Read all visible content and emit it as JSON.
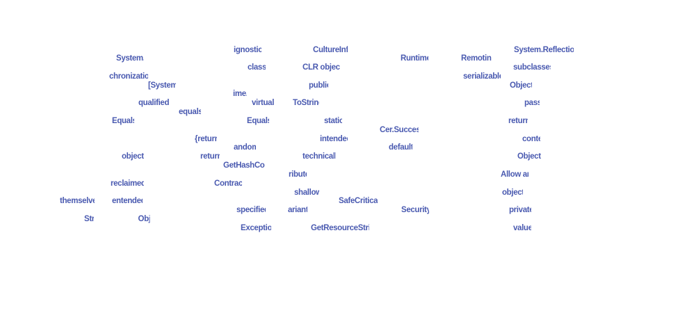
{
  "colors": {
    "word": "#4a5ab0",
    "background": "#ffffff"
  },
  "words": [
    "System.",
    "chronization",
    "[System.",
    "qualified",
    "equals",
    "Equals",
    "object",
    "reclaimed",
    "themselves",
    "entended",
    "Str",
    "Obje",
    "ignostics",
    "class",
    "ime.",
    "virtual",
    "Equals",
    "{return",
    "andom",
    "return",
    "GetHashCode",
    "Contract",
    "ribute",
    "specified",
    "Exception",
    "CultureInfo",
    "CLR objects",
    "public",
    "ToString",
    "static",
    "intended",
    "technically",
    "shallow",
    "ariant",
    "GetResourceString",
    "SafeCritical]",
    "Runtime.",
    "Cer.Success",
    "default",
    "Security",
    "Remoting",
    "serializable",
    "System.Reflection.",
    "subclasses.",
    "Object.",
    "pass",
    "return",
    "contex",
    "Objects",
    "Allow an",
    "object",
    "private",
    "value"
  ]
}
